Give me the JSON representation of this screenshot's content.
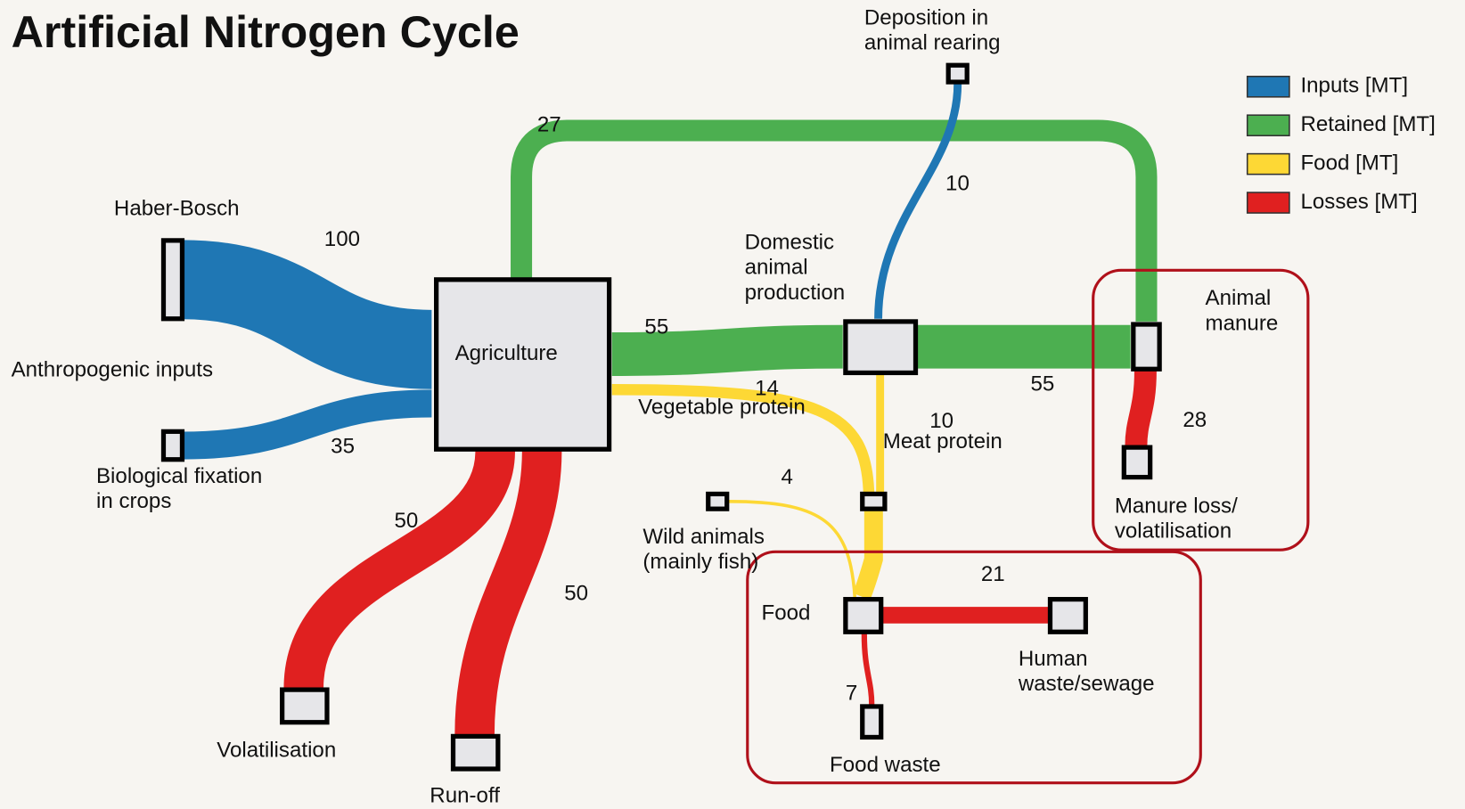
{
  "title": "Artificial Nitrogen Cycle",
  "legend": [
    {
      "label": "Inputs [MT]",
      "color": "#1f77b4"
    },
    {
      "label": "Retained [MT]",
      "color": "#4caf50"
    },
    {
      "label": "Food [MT]",
      "color": "#fdd835"
    },
    {
      "label": "Losses [MT]",
      "color": "#e02020"
    }
  ],
  "labels": [
    {
      "lines": [
        "Deposition in",
        "animal rearing"
      ]
    },
    {
      "lines": [
        "Haber-Bosch"
      ]
    },
    {
      "lines": [
        "Anthropogenic inputs"
      ]
    },
    {
      "lines": [
        "Biological fixation",
        "in crops"
      ]
    },
    {
      "lines": [
        "Agriculture"
      ]
    },
    {
      "lines": [
        "Domestic",
        "animal",
        "production"
      ]
    },
    {
      "lines": [
        "Animal",
        "manure"
      ]
    },
    {
      "lines": [
        "Vegetable protein"
      ]
    },
    {
      "lines": [
        "Meat protein"
      ]
    },
    {
      "lines": [
        "Wild animals",
        "(mainly fish)"
      ]
    },
    {
      "lines": [
        "Manure loss/",
        "volatilisation"
      ]
    },
    {
      "lines": [
        "Food"
      ]
    },
    {
      "lines": [
        "Human",
        "waste/sewage"
      ]
    },
    {
      "lines": [
        "Food waste"
      ]
    },
    {
      "lines": [
        "Volatilisation"
      ]
    },
    {
      "lines": [
        "Run-off"
      ]
    }
  ],
  "flows": [
    {
      "value": 100,
      "color": "#1f77b4"
    },
    {
      "value": 35,
      "color": "#1f77b4"
    },
    {
      "value": 27,
      "color": "#4caf50"
    },
    {
      "value": 55,
      "color": "#4caf50"
    },
    {
      "value": 10,
      "color": "#1f77b4"
    },
    {
      "value": 55,
      "color": "#4caf50"
    },
    {
      "value": 14,
      "color": "#fdd835"
    },
    {
      "value": 10,
      "color": "#fdd835"
    },
    {
      "value": 4,
      "color": "#fdd835"
    },
    {
      "value": 21,
      "color": "#e02020"
    },
    {
      "value": 7,
      "color": "#e02020"
    },
    {
      "value": 28,
      "color": "#e02020"
    },
    {
      "value": 50,
      "color": "#e02020"
    },
    {
      "value": 50,
      "color": "#e02020"
    }
  ]
}
